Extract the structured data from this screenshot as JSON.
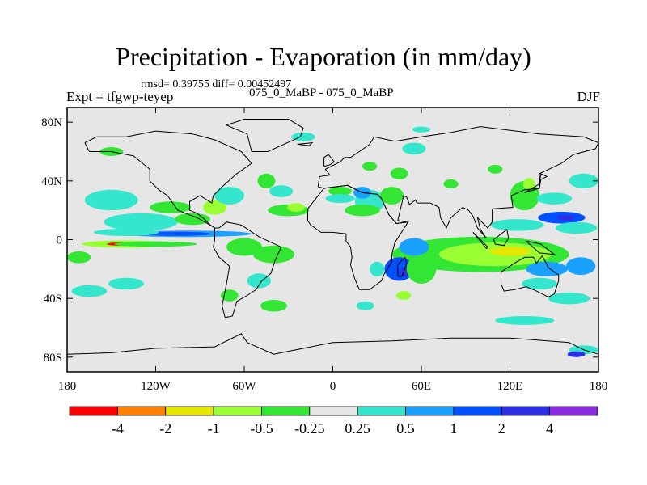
{
  "chart_data": {
    "type": "heatmap",
    "title": "Precipitation - Evaporation (in mm/day)",
    "stats_text": "rmsd= 0.39755 diff= 0.00452497",
    "experiment_label": "Expt = tfgwp-teyep",
    "period_label": "075_0_MaBP - 075_0_MaBP",
    "season": "DJF",
    "xlim": [
      -180,
      180
    ],
    "ylim": [
      -90,
      90
    ],
    "x_ticks": [
      {
        "value": -180,
        "label": "180"
      },
      {
        "value": -120,
        "label": "120W"
      },
      {
        "value": -60,
        "label": "60W"
      },
      {
        "value": 0,
        "label": "0"
      },
      {
        "value": 60,
        "label": "60E"
      },
      {
        "value": 120,
        "label": "120E"
      },
      {
        "value": 180,
        "label": "180"
      }
    ],
    "y_ticks": [
      {
        "value": 80,
        "label": "80N"
      },
      {
        "value": 40,
        "label": "40N"
      },
      {
        "value": 0,
        "label": "0"
      },
      {
        "value": -40,
        "label": "40S"
      },
      {
        "value": -80,
        "label": "80S"
      }
    ],
    "colorbar": {
      "levels": [
        "-4",
        "-2",
        "-1",
        "-0.5",
        "-0.25",
        "0.25",
        "0.5",
        "1",
        "2",
        "4"
      ],
      "colors": [
        "#ff0000",
        "#ff8000",
        "#e6e600",
        "#99ff33",
        "#33e633",
        "#e6e6e6",
        "#33e6cc",
        "#1aa1ff",
        "#0050ff",
        "#2e2ee6",
        "#8a2be2"
      ]
    },
    "regions": [
      {
        "lon": -100,
        "lat": 4,
        "rlon": 45,
        "rlat": 2.2,
        "bin": 7,
        "name": "itcz-east-pacific"
      },
      {
        "lon": -105,
        "lat": 4,
        "rlon": 22,
        "rlat": 1.4,
        "bin": 8
      },
      {
        "lon": -140,
        "lat": 5,
        "rlon": 22,
        "rlat": 2.5,
        "bin": 6
      },
      {
        "lon": -140,
        "lat": -3,
        "rlon": 30,
        "rlat": 2.5,
        "bin": 3
      },
      {
        "lon": -145,
        "lat": -3,
        "rlon": 8,
        "rlat": 1.0,
        "bin": 0
      },
      {
        "lon": -120,
        "lat": -3,
        "rlon": 28,
        "rlat": 1.8,
        "bin": 4
      },
      {
        "lon": -150,
        "lat": 27,
        "rlon": 18,
        "rlat": 7,
        "bin": 6
      },
      {
        "lon": -130,
        "lat": 12,
        "rlon": 25,
        "rlat": 6,
        "bin": 6
      },
      {
        "lon": -95,
        "lat": 14,
        "rlon": 12,
        "rlat": 4,
        "bin": 4
      },
      {
        "lon": -80,
        "lat": 22,
        "rlon": 8,
        "rlat": 5,
        "bin": 3
      },
      {
        "lon": -70,
        "lat": 30,
        "rlon": 10,
        "rlat": 6,
        "bin": 6
      },
      {
        "lon": -45,
        "lat": 40,
        "rlon": 6,
        "rlat": 5,
        "bin": 4
      },
      {
        "lon": -35,
        "lat": 33,
        "rlon": 8,
        "rlat": 4,
        "bin": 6
      },
      {
        "lon": -30,
        "lat": 20,
        "rlon": 14,
        "rlat": 4,
        "bin": 4
      },
      {
        "lon": -25,
        "lat": 22,
        "rlon": 6,
        "rlat": 3,
        "bin": 3
      },
      {
        "lon": -110,
        "lat": 22,
        "rlon": 14,
        "rlat": 4,
        "bin": 4
      },
      {
        "lon": -60,
        "lat": -5,
        "rlon": 12,
        "rlat": 6,
        "bin": 4
      },
      {
        "lon": -40,
        "lat": -10,
        "rlon": 14,
        "rlat": 6,
        "bin": 4
      },
      {
        "lon": -50,
        "lat": -28,
        "rlon": 8,
        "rlat": 5,
        "bin": 6
      },
      {
        "lon": -40,
        "lat": -45,
        "rlon": 9,
        "rlat": 4,
        "bin": 4
      },
      {
        "lon": -70,
        "lat": -38,
        "rlon": 6,
        "rlat": 4,
        "bin": 4
      },
      {
        "lon": -172,
        "lat": -12,
        "rlon": 8,
        "rlat": 4,
        "bin": 4
      },
      {
        "lon": -165,
        "lat": -35,
        "rlon": 12,
        "rlat": 4,
        "bin": 6
      },
      {
        "lon": -140,
        "lat": -30,
        "rlon": 12,
        "rlat": 4,
        "bin": 6
      },
      {
        "lon": 5,
        "lat": 33,
        "rlon": 8,
        "rlat": 3,
        "bin": 4
      },
      {
        "lon": 5,
        "lat": 28,
        "rlon": 10,
        "rlat": 3,
        "bin": 6
      },
      {
        "lon": 25,
        "lat": 26,
        "rlon": 10,
        "rlat": 8,
        "bin": 6
      },
      {
        "lon": 20,
        "lat": 32,
        "rlon": 6,
        "rlat": 4,
        "bin": 7
      },
      {
        "lon": 20,
        "lat": 20,
        "rlon": 12,
        "rlat": 4,
        "bin": 4
      },
      {
        "lon": 40,
        "lat": 30,
        "rlon": 8,
        "rlat": 6,
        "bin": 4
      },
      {
        "lon": 45,
        "lat": 45,
        "rlon": 6,
        "rlat": 4,
        "bin": 4
      },
      {
        "lon": 25,
        "lat": 50,
        "rlon": 5,
        "rlat": 3,
        "bin": 4
      },
      {
        "lon": 55,
        "lat": 62,
        "rlon": 8,
        "rlat": 4,
        "bin": 6
      },
      {
        "lon": 80,
        "lat": 38,
        "rlon": 5,
        "rlat": 3,
        "bin": 4
      },
      {
        "lon": 110,
        "lat": 48,
        "rlon": 5,
        "rlat": 3,
        "bin": 4
      },
      {
        "lon": 130,
        "lat": 30,
        "rlon": 10,
        "rlat": 10,
        "bin": 4
      },
      {
        "lon": 133,
        "lat": 38,
        "rlon": 4,
        "rlat": 4,
        "bin": 3
      },
      {
        "lon": 155,
        "lat": 15,
        "rlon": 16,
        "rlat": 4,
        "bin": 8
      },
      {
        "lon": 158,
        "lat": 15,
        "rlon": 6,
        "rlat": 2,
        "bin": 9
      },
      {
        "lon": 150,
        "lat": 28,
        "rlon": 12,
        "rlat": 4,
        "bin": 6
      },
      {
        "lon": 125,
        "lat": 10,
        "rlon": 18,
        "rlat": 4,
        "bin": 6
      },
      {
        "lon": 170,
        "lat": 40,
        "rlon": 10,
        "rlat": 5,
        "bin": 6
      },
      {
        "lon": 165,
        "lat": 8,
        "rlon": 14,
        "rlat": 4,
        "bin": 6
      },
      {
        "lon": 100,
        "lat": -10,
        "rlon": 60,
        "rlat": 12,
        "bin": 4
      },
      {
        "lon": 110,
        "lat": -10,
        "rlon": 38,
        "rlat": 8,
        "bin": 3
      },
      {
        "lon": 120,
        "lat": -8,
        "rlon": 14,
        "rlat": 3,
        "bin": 2
      },
      {
        "lon": 145,
        "lat": -20,
        "rlon": 14,
        "rlat": 5,
        "bin": 7
      },
      {
        "lon": 168,
        "lat": -18,
        "rlon": 10,
        "rlat": 6,
        "bin": 7
      },
      {
        "lon": 140,
        "lat": -30,
        "rlon": 12,
        "rlat": 4,
        "bin": 6
      },
      {
        "lon": 160,
        "lat": -40,
        "rlon": 14,
        "rlat": 4,
        "bin": 6
      },
      {
        "lon": 130,
        "lat": -55,
        "rlon": 20,
        "rlat": 3,
        "bin": 6
      },
      {
        "lon": 45,
        "lat": -20,
        "rlon": 10,
        "rlat": 8,
        "bin": 8
      },
      {
        "lon": 50,
        "lat": -22,
        "rlon": 5,
        "rlat": 3,
        "bin": 9
      },
      {
        "lon": 60,
        "lat": -20,
        "rlon": 10,
        "rlat": 10,
        "bin": 4
      },
      {
        "lon": 55,
        "lat": -5,
        "rlon": 10,
        "rlat": 6,
        "bin": 7
      },
      {
        "lon": 48,
        "lat": -38,
        "rlon": 5,
        "rlat": 3,
        "bin": 3
      },
      {
        "lon": 30,
        "lat": -20,
        "rlon": 5,
        "rlat": 5,
        "bin": 6
      },
      {
        "lon": 22,
        "lat": -45,
        "rlon": 6,
        "rlat": 3,
        "bin": 6
      },
      {
        "lon": 170,
        "lat": -75,
        "rlon": 10,
        "rlat": 3,
        "bin": 6
      },
      {
        "lon": 165,
        "lat": -78,
        "rlon": 6,
        "rlat": 2,
        "bin": 9
      },
      {
        "lon": 60,
        "lat": 75,
        "rlon": 6,
        "rlat": 2,
        "bin": 6
      },
      {
        "lon": -20,
        "lat": 70,
        "rlon": 8,
        "rlat": 3,
        "bin": 6
      },
      {
        "lon": -150,
        "lat": 60,
        "rlon": 8,
        "rlat": 3,
        "bin": 4
      }
    ],
    "coastlines": [
      [
        [
          -168,
          66
        ],
        [
          -160,
          70
        ],
        [
          -140,
          70
        ],
        [
          -120,
          74
        ],
        [
          -95,
          72
        ],
        [
          -80,
          68
        ],
        [
          -62,
          60
        ],
        [
          -55,
          52
        ],
        [
          -65,
          45
        ],
        [
          -75,
          36
        ],
        [
          -81,
          30
        ],
        [
          -82,
          25
        ],
        [
          -90,
          30
        ],
        [
          -97,
          26
        ],
        [
          -97,
          20
        ],
        [
          -92,
          18
        ],
        [
          -87,
          14
        ],
        [
          -83,
          10
        ],
        [
          -80,
          8
        ],
        [
          -85,
          11
        ],
        [
          -92,
          15
        ],
        [
          -105,
          20
        ],
        [
          -112,
          30
        ],
        [
          -118,
          34
        ],
        [
          -124,
          40
        ],
        [
          -124,
          48
        ],
        [
          -135,
          57
        ],
        [
          -150,
          60
        ],
        [
          -165,
          60
        ],
        [
          -168,
          66
        ]
      ],
      [
        [
          -80,
          8
        ],
        [
          -77,
          8
        ],
        [
          -72,
          12
        ],
        [
          -62,
          10
        ],
        [
          -50,
          2
        ],
        [
          -35,
          -5
        ],
        [
          -39,
          -14
        ],
        [
          -42,
          -23
        ],
        [
          -48,
          -28
        ],
        [
          -52,
          -34
        ],
        [
          -58,
          -38
        ],
        [
          -65,
          -42
        ],
        [
          -68,
          -52
        ],
        [
          -73,
          -53
        ],
        [
          -75,
          -45
        ],
        [
          -72,
          -30
        ],
        [
          -70,
          -18
        ],
        [
          -77,
          -12
        ],
        [
          -81,
          -5
        ],
        [
          -80,
          0
        ],
        [
          -80,
          8
        ]
      ],
      [
        [
          -10,
          36
        ],
        [
          -9,
          43
        ],
        [
          -2,
          44
        ],
        [
          -5,
          48
        ],
        [
          5,
          53
        ],
        [
          8,
          56
        ],
        [
          12,
          56
        ],
        [
          18,
          60
        ],
        [
          25,
          65
        ],
        [
          28,
          70
        ],
        [
          42,
          67
        ],
        [
          60,
          70
        ],
        [
          80,
          73
        ],
        [
          100,
          77
        ],
        [
          140,
          72
        ],
        [
          170,
          70
        ],
        [
          180,
          66
        ],
        [
          178,
          62
        ],
        [
          163,
          58
        ],
        [
          155,
          52
        ],
        [
          140,
          45
        ],
        [
          140,
          35
        ],
        [
          130,
          34
        ],
        [
          121,
          30
        ],
        [
          122,
          22
        ],
        [
          108,
          21
        ],
        [
          108,
          12
        ],
        [
          105,
          8
        ],
        [
          100,
          13
        ],
        [
          98,
          15
        ],
        [
          100,
          7
        ],
        [
          104,
          1
        ],
        [
          98,
          8
        ],
        [
          95,
          16
        ],
        [
          92,
          20
        ],
        [
          88,
          22
        ],
        [
          80,
          15
        ],
        [
          77,
          8
        ],
        [
          73,
          15
        ],
        [
          72,
          22
        ],
        [
          66,
          25
        ],
        [
          57,
          25
        ],
        [
          56,
          27
        ],
        [
          52,
          24
        ],
        [
          50,
          29
        ],
        [
          48,
          30
        ],
        [
          44,
          13
        ],
        [
          50,
          12
        ],
        [
          43,
          11
        ],
        [
          38,
          17
        ],
        [
          33,
          28
        ],
        [
          30,
          31
        ],
        [
          20,
          32
        ],
        [
          10,
          37
        ],
        [
          -6,
          35
        ],
        [
          -10,
          36
        ]
      ],
      [
        [
          -6,
          35
        ],
        [
          -10,
          30
        ],
        [
          -17,
          21
        ],
        [
          -17,
          13
        ],
        [
          -15,
          10
        ],
        [
          -8,
          5
        ],
        [
          0,
          5
        ],
        [
          9,
          4
        ],
        [
          9,
          -1
        ],
        [
          12,
          -5
        ],
        [
          13,
          -12
        ],
        [
          12,
          -17
        ],
        [
          15,
          -27
        ],
        [
          18,
          -34
        ],
        [
          25,
          -34
        ],
        [
          33,
          -28
        ],
        [
          35,
          -23
        ],
        [
          40,
          -15
        ],
        [
          40,
          -10
        ],
        [
          42,
          -2
        ],
        [
          51,
          12
        ],
        [
          43,
          11
        ],
        [
          38,
          17
        ],
        [
          33,
          28
        ],
        [
          30,
          31
        ],
        [
          20,
          32
        ],
        [
          10,
          37
        ],
        [
          -6,
          35
        ]
      ],
      [
        [
          114,
          -22
        ],
        [
          114,
          -30
        ],
        [
          116,
          -35
        ],
        [
          123,
          -34
        ],
        [
          131,
          -32
        ],
        [
          138,
          -35
        ],
        [
          146,
          -39
        ],
        [
          150,
          -37
        ],
        [
          153,
          -28
        ],
        [
          153,
          -24
        ],
        [
          146,
          -19
        ],
        [
          142,
          -11
        ],
        [
          138,
          -16
        ],
        [
          136,
          -12
        ],
        [
          130,
          -12
        ],
        [
          123,
          -16
        ],
        [
          114,
          -22
        ]
      ],
      [
        [
          -180,
          -78
        ],
        [
          -150,
          -77
        ],
        [
          -120,
          -74
        ],
        [
          -80,
          -73
        ],
        [
          -62,
          -64
        ],
        [
          -58,
          -70
        ],
        [
          -40,
          -78
        ],
        [
          0,
          -70
        ],
        [
          40,
          -69
        ],
        [
          80,
          -67
        ],
        [
          120,
          -67
        ],
        [
          160,
          -70
        ],
        [
          170,
          -75
        ],
        [
          180,
          -78
        ]
      ],
      [
        [
          -55,
          60
        ],
        [
          -44,
          60
        ],
        [
          -22,
          70
        ],
        [
          -20,
          76
        ],
        [
          -30,
          82
        ],
        [
          -60,
          82
        ],
        [
          -72,
          78
        ],
        [
          -58,
          72
        ],
        [
          -55,
          60
        ]
      ],
      [
        [
          44,
          -25
        ],
        [
          47,
          -25
        ],
        [
          50,
          -16
        ],
        [
          49,
          -12
        ],
        [
          44,
          -17
        ],
        [
          44,
          -25
        ]
      ],
      [
        [
          95,
          5
        ],
        [
          105,
          -5
        ],
        [
          104,
          -6
        ],
        [
          95,
          5
        ]
      ],
      [
        [
          109,
          0
        ],
        [
          118,
          7
        ],
        [
          119,
          1
        ],
        [
          116,
          -4
        ],
        [
          110,
          -3
        ],
        [
          109,
          0
        ]
      ],
      [
        [
          131,
          -1
        ],
        [
          141,
          -3
        ],
        [
          150,
          -10
        ],
        [
          140,
          -9
        ],
        [
          131,
          -1
        ]
      ],
      [
        [
          130,
          32
        ],
        [
          140,
          35
        ],
        [
          141,
          41
        ],
        [
          145,
          43
        ],
        [
          141,
          45
        ],
        [
          140,
          38
        ],
        [
          130,
          32
        ]
      ],
      [
        [
          -6,
          50
        ],
        [
          -2,
          51
        ],
        [
          1,
          53
        ],
        [
          -3,
          58
        ],
        [
          -6,
          56
        ],
        [
          -6,
          50
        ]
      ],
      [
        [
          -24,
          65
        ],
        [
          -14,
          66
        ],
        [
          -16,
          64
        ],
        [
          -24,
          65
        ]
      ]
    ]
  }
}
